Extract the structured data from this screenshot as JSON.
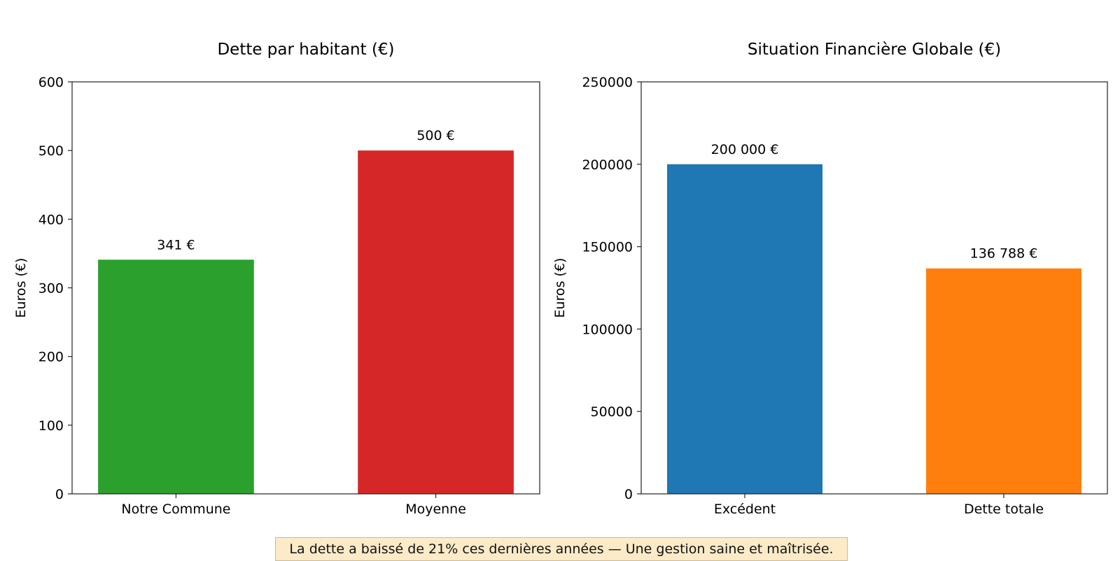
{
  "chart_data": [
    {
      "type": "bar",
      "title": "Dette par habitant (€)",
      "ylabel": "Euros (€)",
      "xlabel": "",
      "categories": [
        "Notre Commune",
        "Moyenne"
      ],
      "values": [
        341,
        500
      ],
      "data_labels": [
        "341 €",
        "500 €"
      ],
      "colors": [
        "#2ca02c",
        "#d62728"
      ],
      "ylim": [
        0,
        600
      ],
      "yticks": [
        0,
        100,
        200,
        300,
        400,
        500,
        600
      ],
      "ytick_labels": [
        "0",
        "100",
        "200",
        "300",
        "400",
        "500",
        "600"
      ],
      "grid": false
    },
    {
      "type": "bar",
      "title": "Situation Financière Globale (€)",
      "ylabel": "Euros (€)",
      "xlabel": "",
      "categories": [
        "Excédent",
        "Dette totale"
      ],
      "values": [
        200000,
        136788
      ],
      "data_labels": [
        "200 000 €",
        "136 788 €"
      ],
      "colors": [
        "#1f77b4",
        "#ff7f0e"
      ],
      "ylim": [
        0,
        250000
      ],
      "yticks": [
        0,
        50000,
        100000,
        150000,
        200000,
        250000
      ],
      "ytick_labels": [
        "0",
        "50000",
        "100000",
        "150000",
        "200000",
        "250000"
      ],
      "grid": false
    }
  ],
  "caption": "La dette a baissé de 21% ces dernières années — Une gestion saine et maîtrisée."
}
